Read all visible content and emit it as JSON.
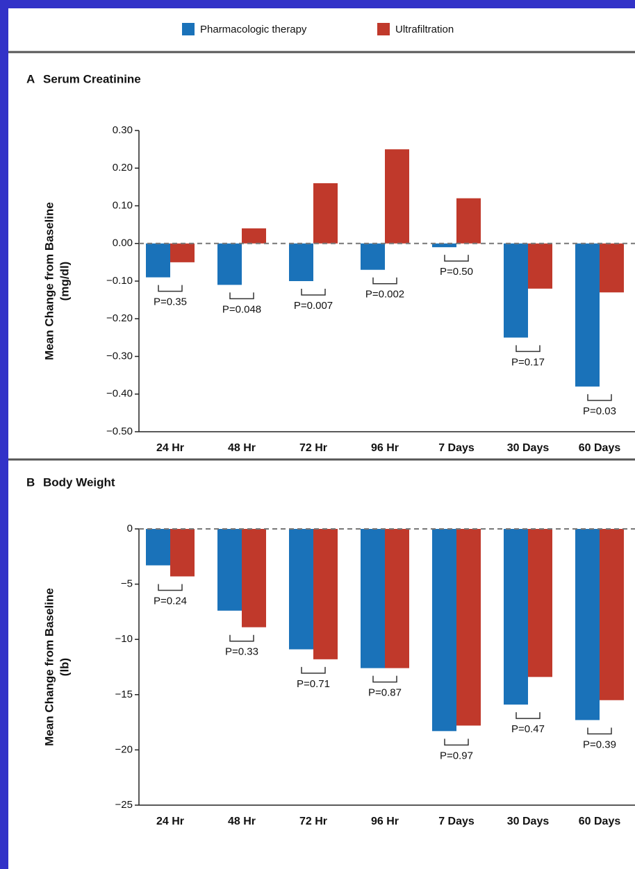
{
  "chart_data": [
    {
      "type": "bar",
      "panel": "A",
      "title": "Serum Creatinine",
      "ylabel": [
        "Mean Change from Baseline",
        "(mg/dl)"
      ],
      "categories": [
        "24 Hr",
        "48 Hr",
        "72 Hr",
        "96 Hr",
        "7 Days",
        "30 Days",
        "60 Days"
      ],
      "series": [
        {
          "name": "Pharmacologic therapy",
          "color": "#1a72b9",
          "values": [
            -0.09,
            -0.11,
            -0.1,
            -0.07,
            -0.01,
            -0.25,
            -0.38
          ]
        },
        {
          "name": "Ultrafiltration",
          "color": "#c0392b",
          "values": [
            -0.05,
            0.04,
            0.16,
            0.25,
            0.12,
            -0.12,
            -0.13
          ]
        }
      ],
      "annotations": [
        "P=0.35",
        "P=0.048",
        "P=0.007",
        "P=0.002",
        "P=0.50",
        "P=0.17",
        "P=0.03"
      ],
      "ylim": [
        -0.5,
        0.3
      ],
      "yticks": [
        {
          "value": 0.3,
          "label": "0.30"
        },
        {
          "value": 0.2,
          "label": "0.20"
        },
        {
          "value": 0.1,
          "label": "0.10"
        },
        {
          "value": 0,
          "label": "0.00"
        },
        {
          "value": -0.1,
          "label": "−0.10"
        },
        {
          "value": -0.2,
          "label": "−0.20"
        },
        {
          "value": -0.3,
          "label": "−0.30"
        },
        {
          "value": -0.4,
          "label": "−0.40"
        },
        {
          "value": -0.5,
          "label": "−0.50"
        }
      ]
    },
    {
      "type": "bar",
      "panel": "B",
      "title": "Body Weight",
      "ylabel": [
        "Mean Change from Baseline",
        "(lb)"
      ],
      "categories": [
        "24 Hr",
        "48 Hr",
        "72 Hr",
        "96 Hr",
        "7 Days",
        "30 Days",
        "60 Days"
      ],
      "series": [
        {
          "name": "Pharmacologic therapy",
          "color": "#1a72b9",
          "values": [
            -3.3,
            -7.4,
            -10.9,
            -12.6,
            -18.3,
            -15.9,
            -17.3
          ]
        },
        {
          "name": "Ultrafiltration",
          "color": "#c0392b",
          "values": [
            -4.3,
            -8.9,
            -11.8,
            -12.6,
            -17.8,
            -13.4,
            -15.5
          ]
        }
      ],
      "annotations": [
        "P=0.24",
        "P=0.33",
        "P=0.71",
        "P=0.87",
        "P=0.97",
        "P=0.47",
        "P=0.39"
      ],
      "ylim": [
        -25,
        0
      ],
      "yticks": [
        0,
        {
          "value": -5,
          "label": "−5"
        },
        {
          "value": -10,
          "label": "−10"
        },
        {
          "value": -15,
          "label": "−15"
        },
        {
          "value": -20,
          "label": "−20"
        },
        {
          "value": -25,
          "label": "−25"
        }
      ]
    }
  ]
}
